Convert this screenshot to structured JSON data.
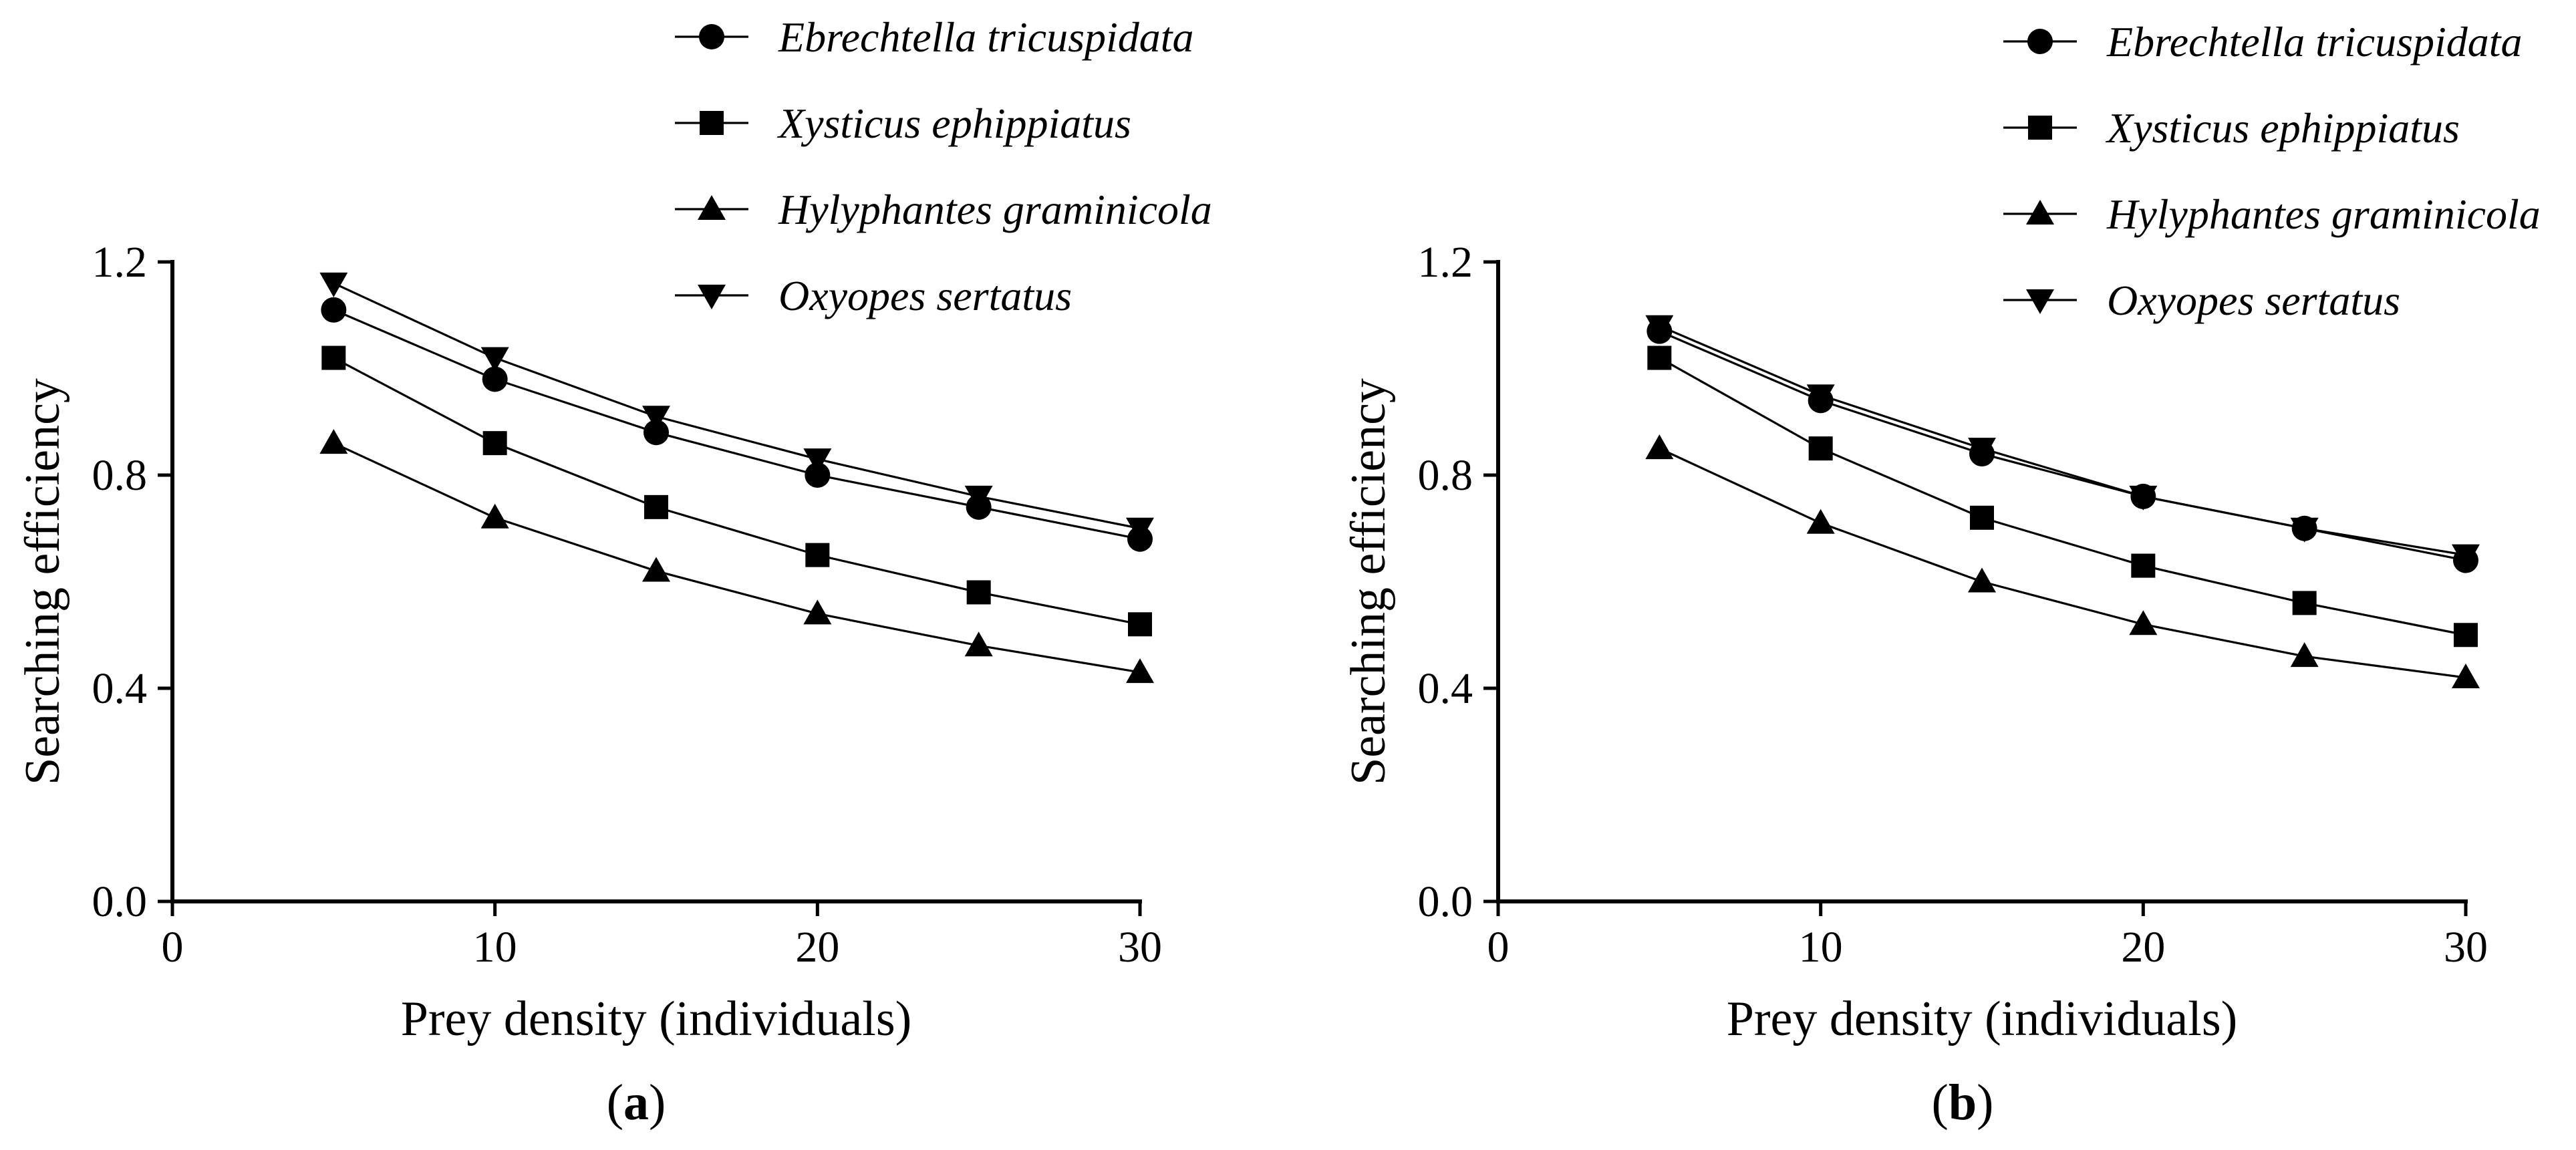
{
  "chart_data": [
    {
      "type": "line",
      "panel_label": "a",
      "xlabel": "Prey density (individuals)",
      "ylabel": "Searching efficiency",
      "xlim": [
        0,
        30
      ],
      "ylim": [
        0,
        1.2
      ],
      "xticks": [
        "0",
        "10",
        "20",
        "30"
      ],
      "yticks": [
        "0.0",
        "0.4",
        "0.8",
        "1.2"
      ],
      "legend_position": "top",
      "x": [
        5,
        10,
        15,
        20,
        25,
        30
      ],
      "series": [
        {
          "name": "Ebrechtella tricuspidata",
          "marker": "circle",
          "values": [
            1.11,
            0.98,
            0.88,
            0.8,
            0.74,
            0.68
          ]
        },
        {
          "name": "Xysticus ephippiatus",
          "marker": "square",
          "values": [
            1.02,
            0.86,
            0.74,
            0.65,
            0.58,
            0.52
          ]
        },
        {
          "name": "Hylyphantes graminicola",
          "marker": "triangle-up",
          "values": [
            0.86,
            0.72,
            0.62,
            0.54,
            0.48,
            0.43
          ]
        },
        {
          "name": "Oxyopes sertatus",
          "marker": "triangle-down",
          "values": [
            1.16,
            1.02,
            0.91,
            0.83,
            0.76,
            0.7
          ]
        }
      ]
    },
    {
      "type": "line",
      "panel_label": "b",
      "xlabel": "Prey density (individuals)",
      "ylabel": "Searching efficiency",
      "xlim": [
        0,
        30
      ],
      "ylim": [
        0,
        1.2
      ],
      "xticks": [
        "0",
        "10",
        "20",
        "30"
      ],
      "yticks": [
        "0.0",
        "0.4",
        "0.8",
        "1.2"
      ],
      "legend_position": "top",
      "x": [
        5,
        10,
        15,
        20,
        25,
        30
      ],
      "series": [
        {
          "name": "Ebrechtella tricuspidata",
          "marker": "circle",
          "values": [
            1.07,
            0.94,
            0.84,
            0.76,
            0.7,
            0.64
          ]
        },
        {
          "name": "Xysticus ephippiatus",
          "marker": "square",
          "values": [
            1.02,
            0.85,
            0.72,
            0.63,
            0.56,
            0.5
          ]
        },
        {
          "name": "Hylyphantes graminicola",
          "marker": "triangle-up",
          "values": [
            0.85,
            0.71,
            0.6,
            0.52,
            0.46,
            0.42
          ]
        },
        {
          "name": "Oxyopes sertatus",
          "marker": "triangle-down",
          "values": [
            1.08,
            0.95,
            0.85,
            0.76,
            0.7,
            0.65
          ]
        }
      ]
    }
  ]
}
